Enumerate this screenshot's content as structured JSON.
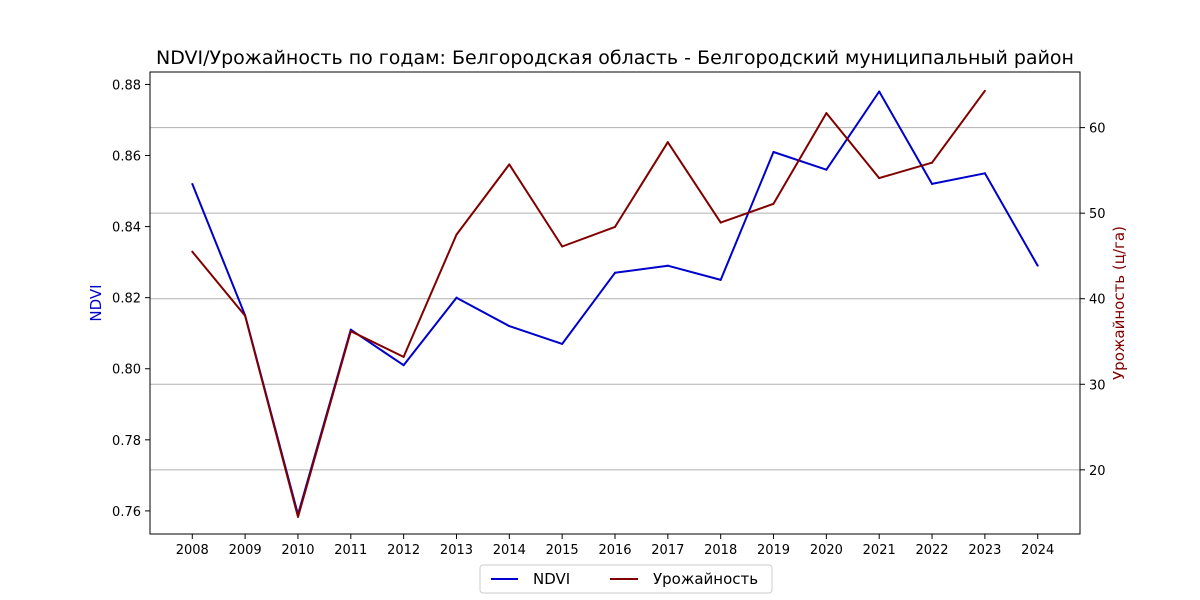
{
  "chart_data": {
    "type": "line",
    "title": "NDVI/Урожайность по годам: Белгородская область - Белгородский муниципальный район",
    "x": [
      2008,
      2009,
      2010,
      2011,
      2012,
      2013,
      2014,
      2015,
      2016,
      2017,
      2018,
      2019,
      2020,
      2021,
      2022,
      2023,
      2024
    ],
    "y_left_label": "NDVI",
    "y_right_label": "Урожайность (ц/га)",
    "y_left_lim": [
      0.7535,
      0.8835
    ],
    "y_right_lim": [
      12.5,
      66.5
    ],
    "y_left_ticks": [
      0.76,
      0.78,
      0.8,
      0.82,
      0.84,
      0.86,
      0.88
    ],
    "y_left_tick_labels": [
      "0.76",
      "0.78",
      "0.80",
      "0.82",
      "0.84",
      "0.86",
      "0.88"
    ],
    "y_right_ticks": [
      20,
      30,
      40,
      50,
      60
    ],
    "y_right_tick_labels": [
      "20",
      "30",
      "40",
      "50",
      "60"
    ],
    "grid": "horizontal lines at right-axis ticks",
    "legend": {
      "placement": "bottom-center, below plot",
      "entries": [
        "NDVI",
        "Урожайность"
      ]
    },
    "series": [
      {
        "name": "NDVI",
        "axis": "left",
        "color": "#0000cd",
        "values": [
          0.852,
          0.815,
          0.759,
          0.811,
          0.801,
          0.82,
          0.812,
          0.807,
          0.827,
          0.829,
          0.825,
          0.861,
          0.856,
          0.878,
          0.852,
          0.855,
          0.829
        ]
      },
      {
        "name": "Урожайность",
        "axis": "right",
        "color": "#800000",
        "values": [
          45.5,
          38.0,
          14.5,
          36.2,
          33.2,
          47.5,
          55.7,
          46.1,
          48.4,
          58.3,
          48.9,
          51.1,
          61.7,
          54.1,
          55.9,
          64.3,
          null
        ]
      }
    ]
  }
}
